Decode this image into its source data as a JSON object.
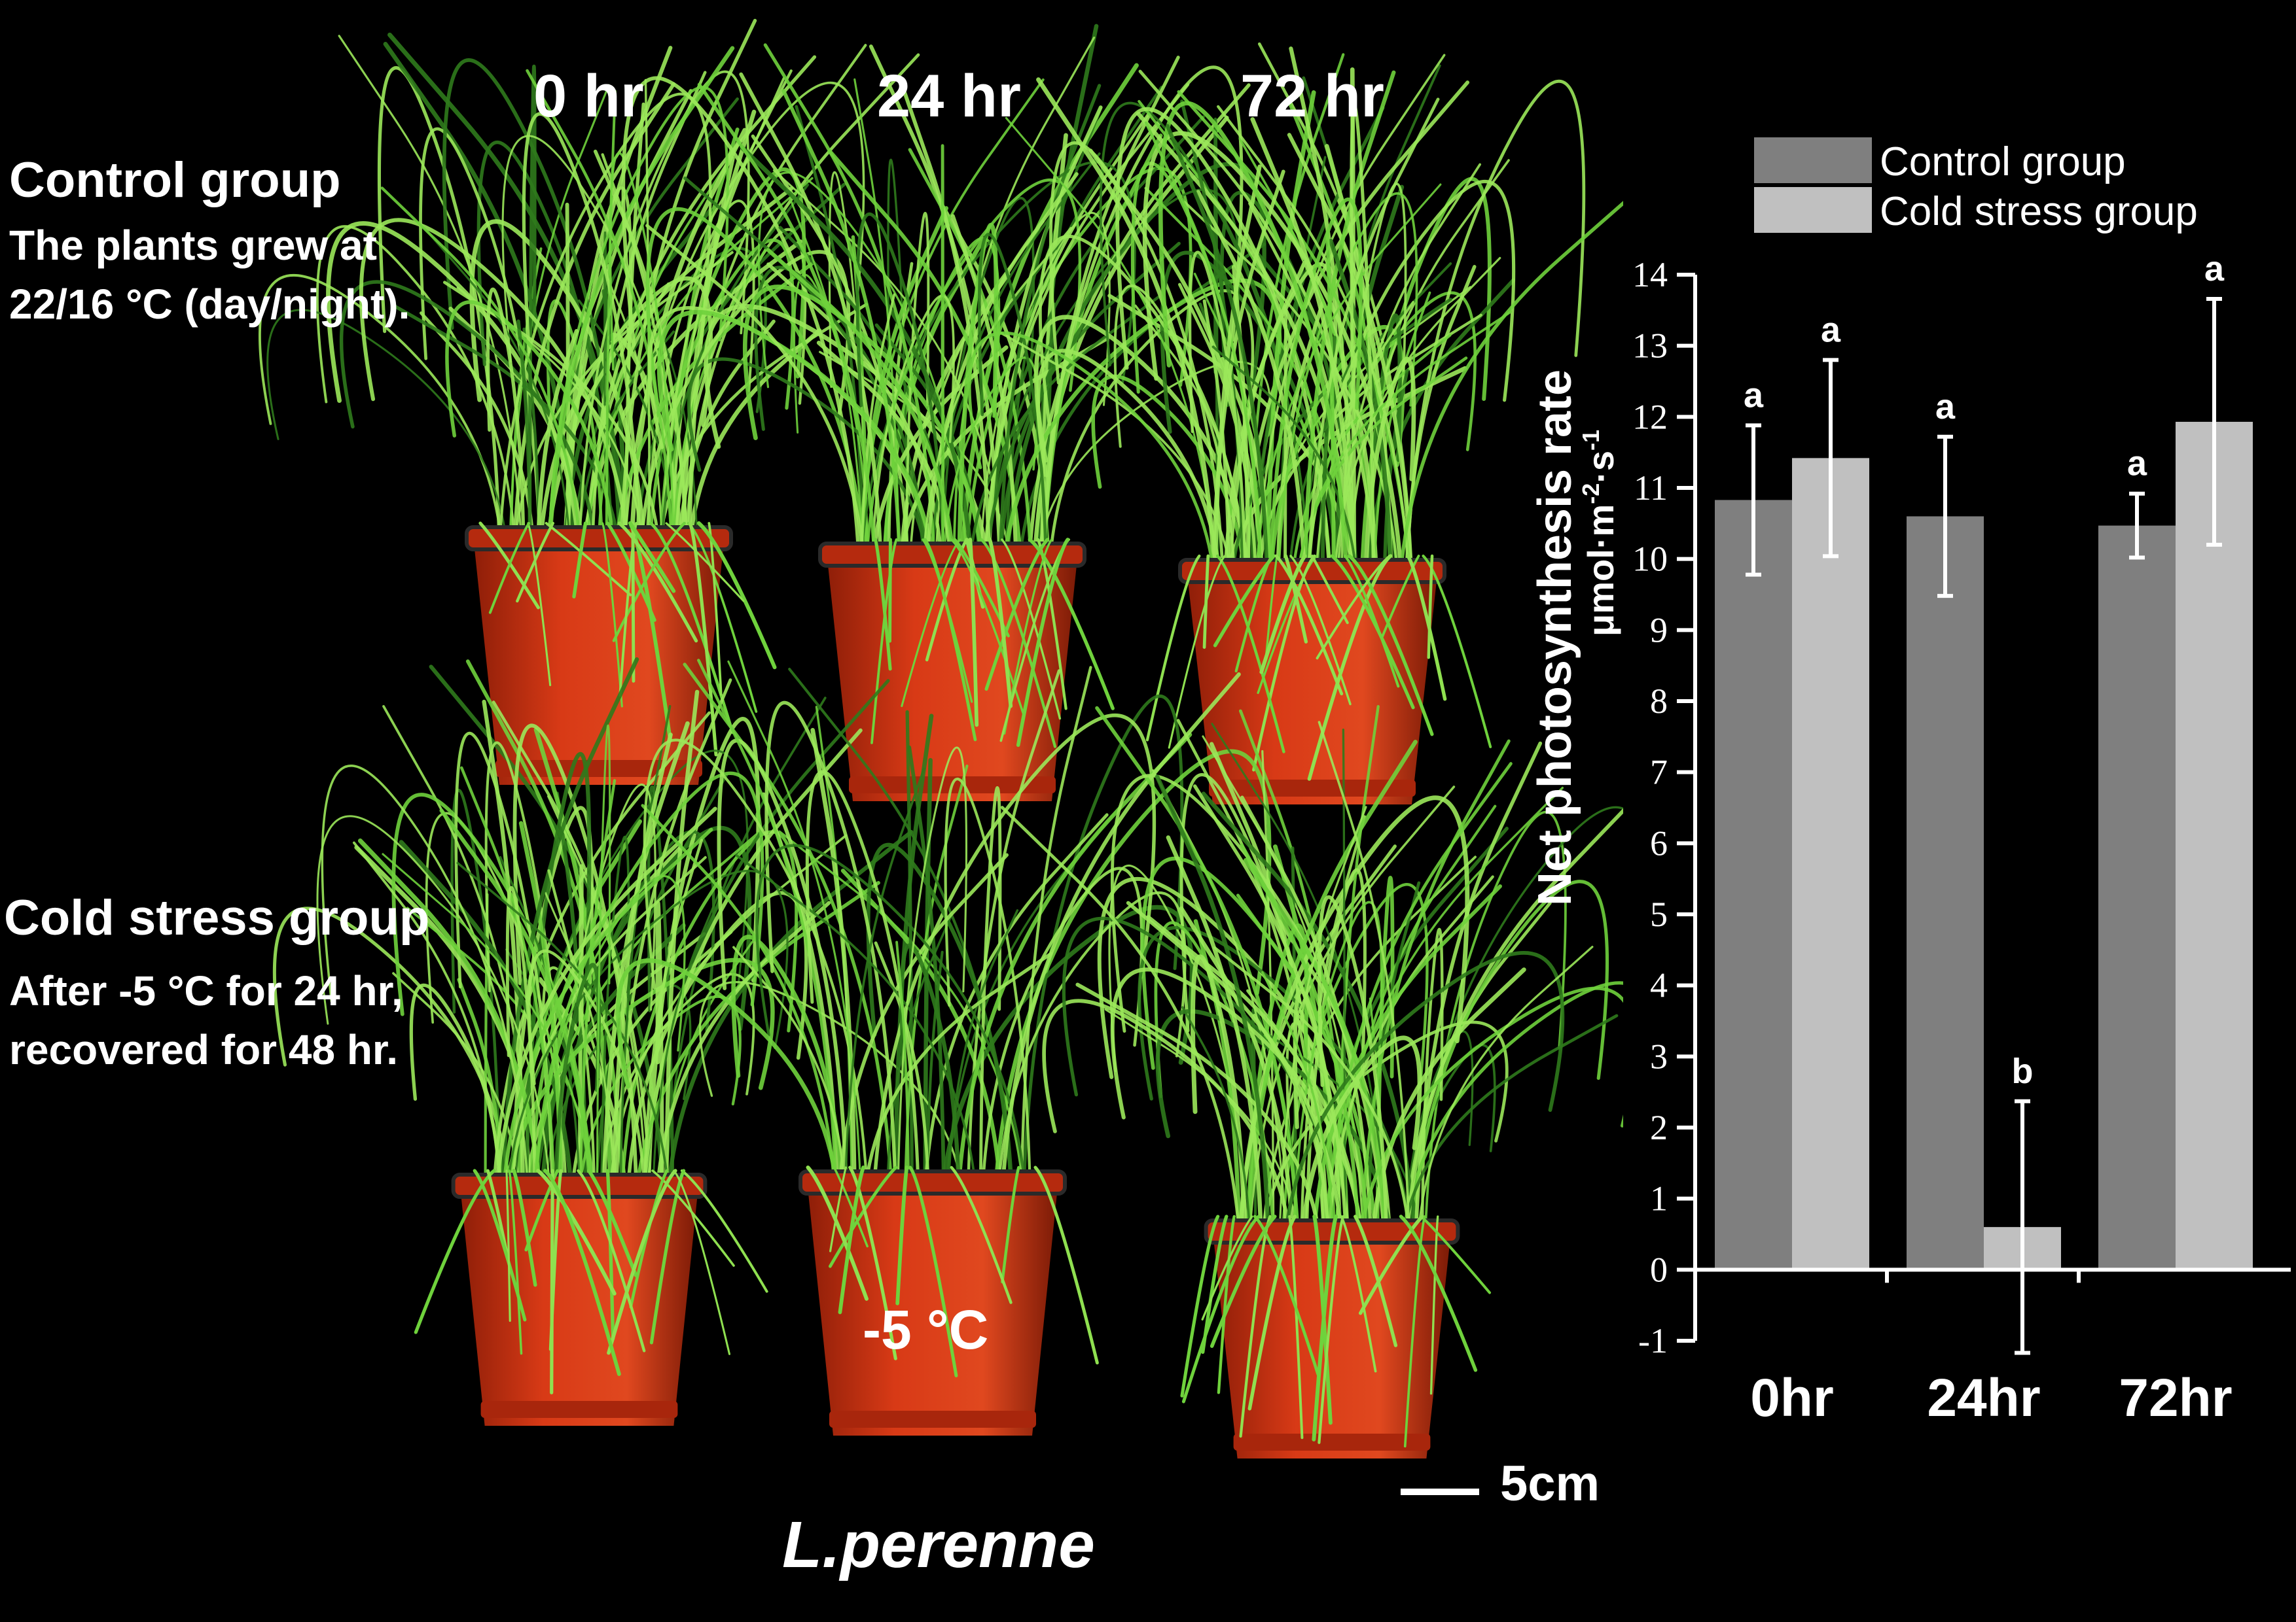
{
  "photo": {
    "columns": [
      "0 hr",
      "24 hr",
      "72 hr"
    ],
    "control": {
      "title": "Control group",
      "desc": [
        "The plants grew at",
        "22/16 °C (day/night)."
      ]
    },
    "cold": {
      "title": "Cold stress group",
      "desc": [
        "After -5 °C for 24 hr,",
        "recovered for 48 hr."
      ]
    },
    "pot_label": "-5 °C",
    "scale_bar": "5cm",
    "species": "L.perenne",
    "colors": {
      "pot": "#d83a16",
      "grass": "#6fd23c",
      "grass_dark": "#2f7a1c"
    }
  },
  "chart_data": {
    "type": "bar",
    "categories": [
      "0hr",
      "24hr",
      "72hr"
    ],
    "ylabel_line1": "Net photosynthesis rate",
    "ylabel_line2": "μmol·m",
    "ylabel_sup1": "-2",
    "ylabel_mid": "·s",
    "ylabel_sup2": "-1",
    "ylim": [
      -1,
      14
    ],
    "yticks": [
      -1,
      0,
      1,
      2,
      3,
      4,
      5,
      6,
      7,
      8,
      9,
      10,
      11,
      12,
      13,
      14
    ],
    "legend_position": "top",
    "series": [
      {
        "name": "Control group",
        "color": "#7f7f7f",
        "values": [
          10.83,
          10.6,
          10.47
        ],
        "err": [
          1.05,
          1.12,
          0.45
        ],
        "letters": [
          "a",
          "a",
          "a"
        ]
      },
      {
        "name": "Cold stress group",
        "color": "#c0c0c0",
        "values": [
          11.42,
          0.6,
          11.93
        ],
        "err": [
          1.38,
          1.77,
          1.73
        ],
        "letters": [
          "a",
          "b",
          "a"
        ]
      }
    ]
  }
}
